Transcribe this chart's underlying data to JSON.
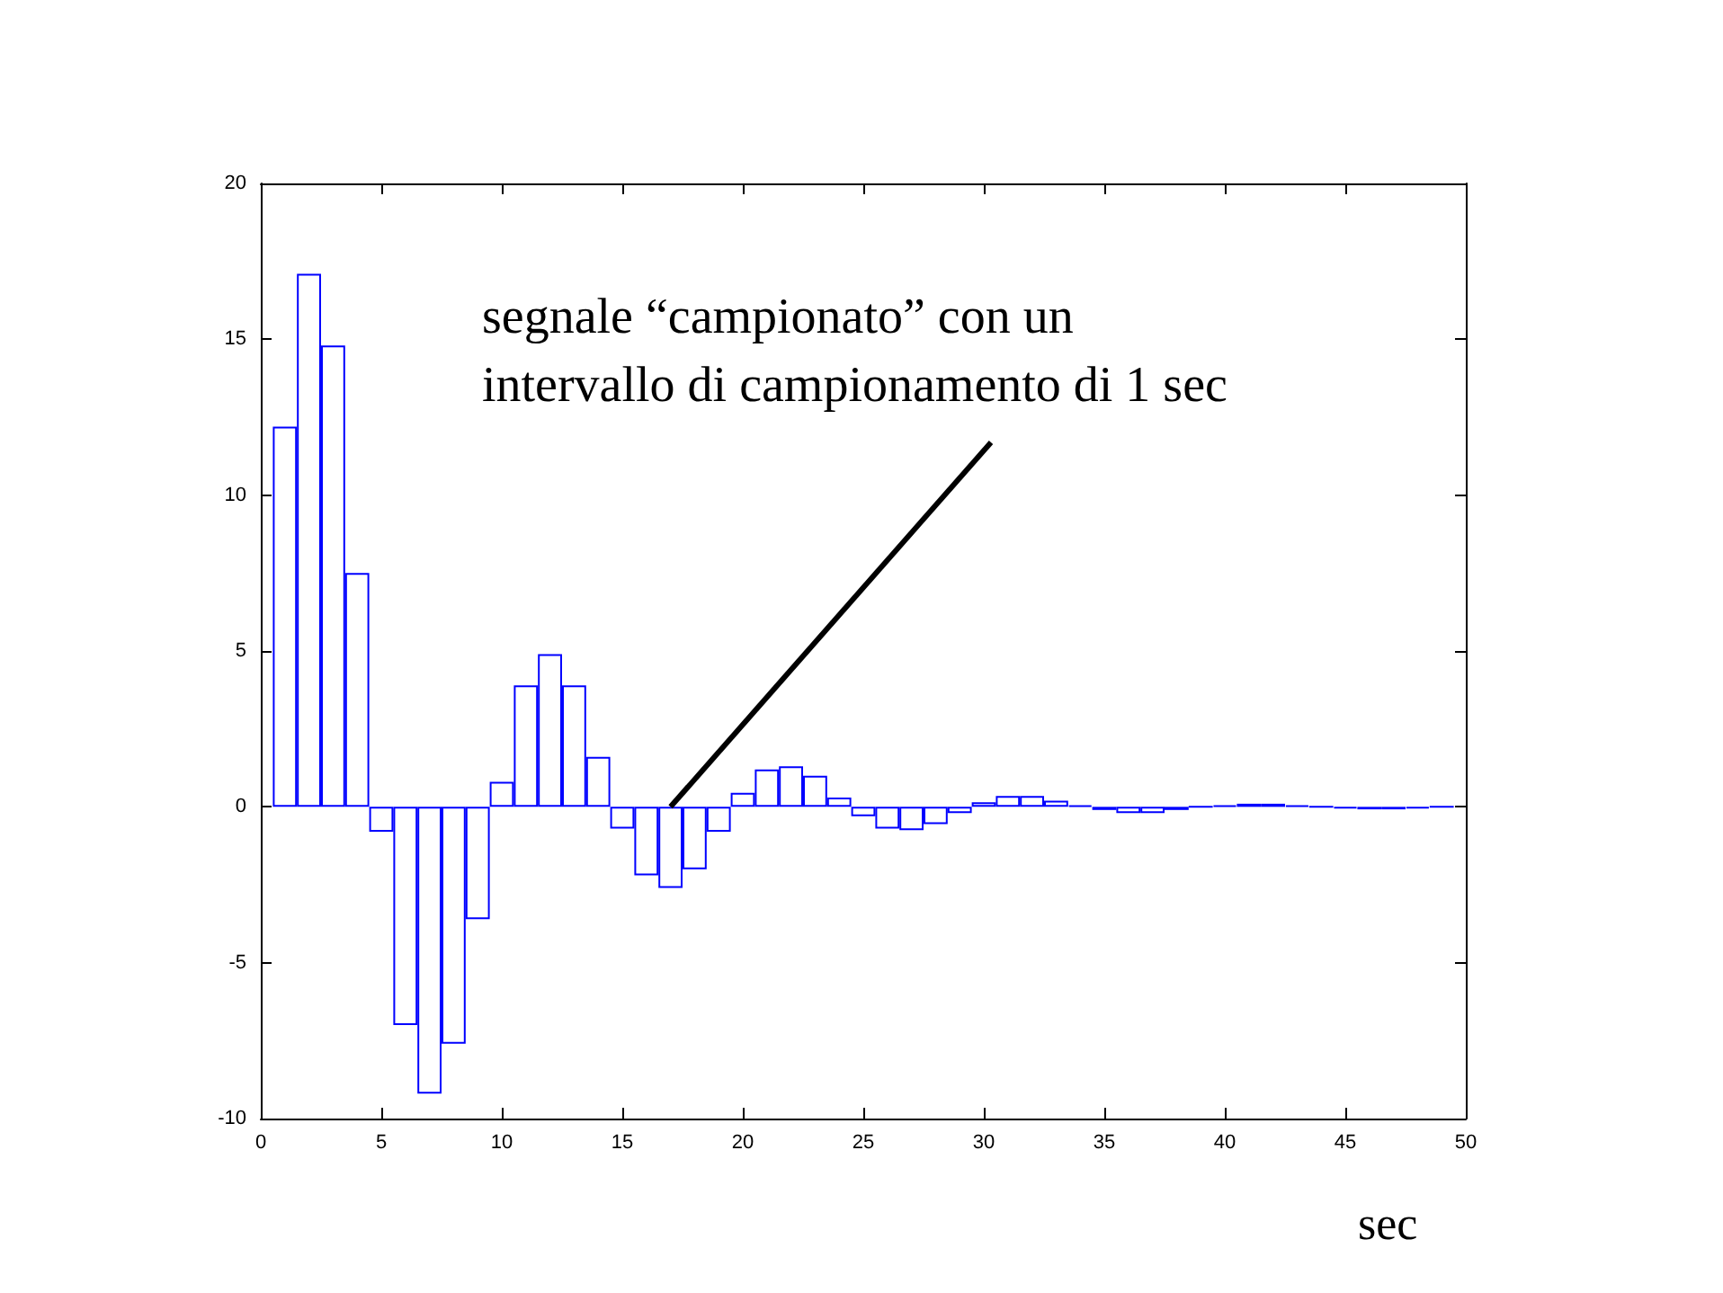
{
  "chart_data": {
    "type": "bar",
    "xlabel": "sec",
    "x": [
      1,
      2,
      3,
      4,
      5,
      6,
      7,
      8,
      9,
      10,
      11,
      12,
      13,
      14,
      15,
      16,
      17,
      18,
      19,
      20,
      21,
      22,
      23,
      24,
      25,
      26,
      27,
      28,
      29,
      30,
      31,
      32,
      33,
      34,
      35,
      36,
      37,
      38,
      39,
      40,
      41,
      42,
      43,
      44,
      45,
      46,
      47,
      48,
      49
    ],
    "series": [
      {
        "color": "#0000ff",
        "values": [
          12.2,
          17.1,
          14.8,
          7.5,
          -0.8,
          -7.0,
          -9.2,
          -7.6,
          -3.6,
          0.8,
          3.9,
          4.9,
          3.9,
          1.6,
          -0.7,
          -2.2,
          -2.6,
          -2.0,
          -0.8,
          0.45,
          1.2,
          1.3,
          1.0,
          0.3,
          -0.3,
          -0.7,
          -0.75,
          -0.55,
          -0.2,
          0.15,
          0.35,
          0.35,
          0.2,
          0.05,
          -0.1,
          -0.2,
          -0.2,
          -0.1,
          0.0,
          0.05,
          0.1,
          0.1,
          0.05,
          0.0,
          -0.05,
          -0.08,
          -0.08,
          -0.05,
          0.0
        ]
      }
    ],
    "xlim": [
      0,
      50
    ],
    "xticks": [
      0,
      5,
      10,
      15,
      20,
      25,
      30,
      35,
      40,
      45,
      50
    ],
    "ylim": [
      -10,
      20
    ],
    "yticks": [
      -10,
      -5,
      0,
      5,
      10,
      15,
      20
    ],
    "annotations": [
      {
        "text": "segnale “campionato” con un intervallo di campionamento di 1 sec",
        "x": 17,
        "y": 0
      }
    ],
    "grid": false
  }
}
